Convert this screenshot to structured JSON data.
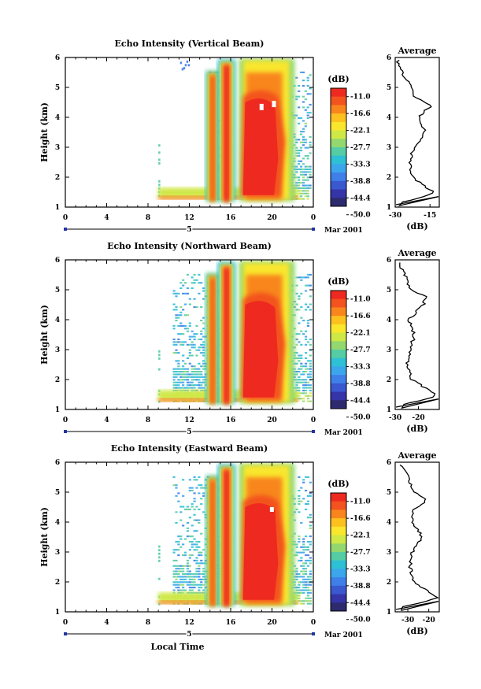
{
  "x_axis_label": "Local Time",
  "date_label": "Mar 2001",
  "day_label": "5",
  "colorbar_unit": "(dB)",
  "colorbar_levels": [
    "-11.0",
    "-16.6",
    "-22.1",
    "-27.7",
    "-33.3",
    "-38.8",
    "-44.4",
    "-50.0"
  ],
  "colorbar_colors": [
    "#ee2a20",
    "#f3531e",
    "#f8861d",
    "#fcc01f",
    "#f9e62d",
    "#cfe846",
    "#92d86f",
    "#55cca4",
    "#2ec0d5",
    "#3ba6ec",
    "#3f7fe8",
    "#3a58cf",
    "#3535a8",
    "#2d2a6e"
  ],
  "chart_data": [
    {
      "type": "heatmap",
      "title": "Echo Intensity (Vertical Beam)",
      "xlabel": "",
      "ylabel": "Height (km)",
      "xlim": [
        0,
        24
      ],
      "ylim": [
        1,
        6
      ],
      "x_ticks": [
        "0",
        "4",
        "8",
        "12",
        "16",
        "20",
        "0"
      ],
      "y_ticks": [
        "1",
        "2",
        "3",
        "4",
        "5",
        "6"
      ],
      "zlim": [
        -50.0,
        -11.0
      ],
      "zunit": "dB",
      "profile": {
        "title": "Average",
        "xlabel": "(dB)",
        "xlim": [
          -30,
          -11
        ],
        "x_ticks": [
          "-30",
          "-15"
        ],
        "height_km": [
          1.15,
          1.3,
          1.45,
          1.6,
          2.0,
          2.5,
          3.0,
          3.5,
          4.0,
          4.4,
          4.75,
          5.0,
          5.5,
          5.9
        ],
        "db": [
          -28.0,
          -20.0,
          -13.0,
          -15.5,
          -22.5,
          -24.0,
          -22.0,
          -17.0,
          -20.0,
          -14.5,
          -22.5,
          -23.0,
          -27.0,
          -29.0
        ]
      }
    },
    {
      "type": "heatmap",
      "title": "Echo Intensity (Northward Beam)",
      "xlabel": "",
      "ylabel": "Height (km)",
      "xlim": [
        0,
        24
      ],
      "ylim": [
        1,
        6
      ],
      "x_ticks": [
        "0",
        "4",
        "8",
        "12",
        "16",
        "20",
        "0"
      ],
      "y_ticks": [
        "1",
        "2",
        "3",
        "4",
        "5",
        "6"
      ],
      "zlim": [
        -50.0,
        -11.0
      ],
      "zunit": "dB",
      "profile": {
        "title": "Average",
        "xlabel": "(dB)",
        "xlim": [
          -30,
          -11
        ],
        "x_ticks": [
          "-30",
          "-20"
        ],
        "height_km": [
          1.15,
          1.3,
          1.45,
          1.6,
          2.0,
          2.5,
          3.0,
          3.5,
          4.0,
          4.4,
          4.75,
          5.0,
          5.5,
          5.9
        ],
        "db": [
          -27.0,
          -19.0,
          -12.0,
          -14.5,
          -23.0,
          -25.0,
          -23.0,
          -22.0,
          -24.0,
          -19.0,
          -16.0,
          -23.0,
          -26.0,
          -28.0
        ]
      }
    },
    {
      "type": "heatmap",
      "title": "Echo Intensity (Eastward Beam)",
      "xlabel": "Local Time",
      "ylabel": "Height (km)",
      "xlim": [
        0,
        24
      ],
      "ylim": [
        1,
        6
      ],
      "x_ticks": [
        "0",
        "4",
        "8",
        "12",
        "16",
        "20",
        "0"
      ],
      "y_ticks": [
        "1",
        "2",
        "3",
        "4",
        "5",
        "6"
      ],
      "zlim": [
        -50.0,
        -11.0
      ],
      "zunit": "dB",
      "profile": {
        "title": "Average",
        "xlabel": "(dB)",
        "xlim": [
          -36,
          -15
        ],
        "x_ticks": [
          "-30",
          "-20"
        ],
        "height_km": [
          1.15,
          1.3,
          1.45,
          1.6,
          2.0,
          2.5,
          3.0,
          3.5,
          4.0,
          4.4,
          4.75,
          5.0,
          5.5,
          5.9
        ],
        "db": [
          -33.0,
          -24.0,
          -16.0,
          -18.5,
          -27.0,
          -29.0,
          -28.0,
          -23.0,
          -28.0,
          -27.0,
          -21.0,
          -27.0,
          -30.0,
          -33.0
        ]
      }
    }
  ]
}
